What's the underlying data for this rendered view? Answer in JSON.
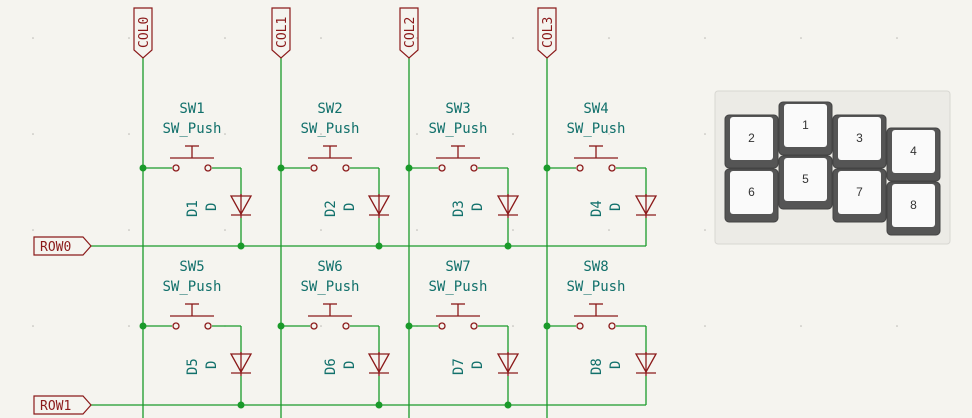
{
  "schematic": {
    "columns": [
      {
        "label": "COL0"
      },
      {
        "label": "COL1"
      },
      {
        "label": "COL2"
      },
      {
        "label": "COL3"
      }
    ],
    "rows": [
      {
        "label": "ROW0"
      },
      {
        "label": "ROW1"
      }
    ],
    "switches": [
      {
        "ref": "SW1",
        "value": "SW_Push",
        "diode_ref": "D1",
        "diode_value": "D"
      },
      {
        "ref": "SW2",
        "value": "SW_Push",
        "diode_ref": "D2",
        "diode_value": "D"
      },
      {
        "ref": "SW3",
        "value": "SW_Push",
        "diode_ref": "D3",
        "diode_value": "D"
      },
      {
        "ref": "SW4",
        "value": "SW_Push",
        "diode_ref": "D4",
        "diode_value": "D"
      },
      {
        "ref": "SW5",
        "value": "SW_Push",
        "diode_ref": "D5",
        "diode_value": "D"
      },
      {
        "ref": "SW6",
        "value": "SW_Push",
        "diode_ref": "D6",
        "diode_value": "D"
      },
      {
        "ref": "SW7",
        "value": "SW_Push",
        "diode_ref": "D7",
        "diode_value": "D"
      },
      {
        "ref": "SW8",
        "value": "SW_Push",
        "diode_ref": "D8",
        "diode_value": "D"
      }
    ]
  },
  "keyboard_layout": {
    "keys": [
      "1",
      "2",
      "3",
      "4",
      "5",
      "6",
      "7",
      "8"
    ]
  },
  "colors": {
    "background": "#f5f4ef",
    "wire": "#1a9a2a",
    "symbol": "#8b1a1a",
    "text": "#11706b",
    "junction": "#1a9a2a"
  }
}
